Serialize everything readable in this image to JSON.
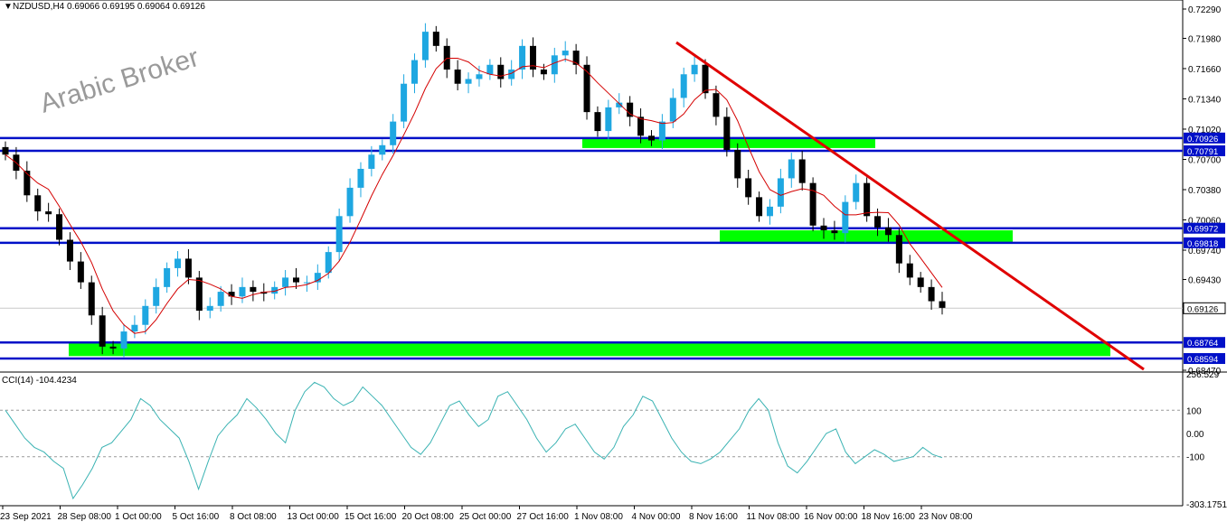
{
  "header": {
    "symbol_line": "NZDUSD,H4  0.69066 0.69195 0.69064 0.69126"
  },
  "watermark": "Arabic Broker",
  "indicator": {
    "label": "CCI(14) -104.4234"
  },
  "colors": {
    "bull_candle": "#1ea7e1",
    "bear_candle": "#000000",
    "ma_line": "#d40000",
    "cci_line": "#3bb3b3",
    "level_line": "#0010c8",
    "zone_fill": "#00ff00",
    "trendline": "#e00000",
    "price_tag_bg": "#0010c8"
  },
  "chart_data": [
    {
      "type": "candlestick",
      "title": "NZDUSD,H4",
      "ylim": [
        0.6847,
        0.7229
      ],
      "y_ticks": [
        "0.72290",
        "0.71980",
        "0.71660",
        "0.71340",
        "0.71020",
        "0.70700",
        "0.70380",
        "0.70060",
        "0.69740",
        "0.69430",
        "0.68470"
      ],
      "x_labels": [
        "23 Sep 2021",
        "28 Sep 08:00",
        "1 Oct 00:00",
        "5 Oct 16:00",
        "8 Oct 08:00",
        "13 Oct 00:00",
        "15 Oct 16:00",
        "20 Oct 08:00",
        "25 Oct 00:00",
        "27 Oct 16:00",
        "1 Nov 08:00",
        "4 Nov 00:00",
        "8 Nov 16:00",
        "11 Nov 08:00",
        "16 Nov 00:00",
        "18 Nov 16:00",
        "23 Nov 08:00"
      ],
      "current_price": "0.69126",
      "horizontal_levels": [
        "0.70926",
        "0.70791",
        "0.69972",
        "0.69818",
        "0.68764",
        "0.68594"
      ],
      "support_resistance_zones": [
        {
          "from": 0.7082,
          "to": 0.7092
        },
        {
          "from": 0.6982,
          "to": 0.6995
        },
        {
          "from": 0.6862,
          "to": 0.6876
        }
      ],
      "series": [
        {
          "name": "close",
          "x": [
            "23 Sep",
            "23 Sep",
            "24 Sep",
            "24 Sep",
            "27 Sep",
            "27 Sep",
            "28 Sep",
            "28 Sep",
            "29 Sep",
            "29 Sep",
            "30 Sep",
            "30 Sep",
            "1 Oct",
            "1 Oct",
            "4 Oct",
            "4 Oct",
            "5 Oct",
            "5 Oct",
            "6 Oct",
            "6 Oct",
            "7 Oct",
            "7 Oct",
            "8 Oct",
            "8 Oct",
            "11 Oct",
            "11 Oct",
            "12 Oct",
            "12 Oct",
            "13 Oct",
            "13 Oct",
            "14 Oct",
            "14 Oct",
            "15 Oct",
            "15 Oct",
            "18 Oct",
            "18 Oct",
            "19 Oct",
            "19 Oct",
            "20 Oct",
            "20 Oct",
            "21 Oct",
            "21 Oct",
            "22 Oct",
            "22 Oct",
            "25 Oct",
            "25 Oct",
            "26 Oct",
            "26 Oct",
            "27 Oct",
            "27 Oct",
            "28 Oct",
            "28 Oct",
            "29 Oct",
            "29 Oct",
            "1 Nov",
            "1 Nov",
            "2 Nov",
            "2 Nov",
            "3 Nov",
            "3 Nov",
            "4 Nov",
            "4 Nov",
            "5 Nov",
            "5 Nov",
            "8 Nov",
            "8 Nov",
            "9 Nov",
            "9 Nov",
            "10 Nov",
            "10 Nov",
            "11 Nov",
            "11 Nov",
            "12 Nov",
            "12 Nov",
            "15 Nov",
            "15 Nov",
            "16 Nov",
            "16 Nov",
            "17 Nov",
            "17 Nov",
            "18 Nov",
            "18 Nov",
            "19 Nov",
            "19 Nov",
            "22 Nov",
            "22 Nov",
            "23 Nov",
            "23 Nov"
          ],
          "values": [
            0.7075,
            0.7058,
            0.7032,
            0.7015,
            0.7012,
            0.6985,
            0.6962,
            0.694,
            0.6905,
            0.6872,
            0.687,
            0.6888,
            0.6895,
            0.6915,
            0.6935,
            0.6955,
            0.6965,
            0.6945,
            0.691,
            0.6915,
            0.693,
            0.6925,
            0.6935,
            0.693,
            0.6928,
            0.6935,
            0.6945,
            0.694,
            0.694,
            0.695,
            0.6972,
            0.701,
            0.704,
            0.706,
            0.7075,
            0.7085,
            0.711,
            0.715,
            0.7175,
            0.7205,
            0.719,
            0.7165,
            0.715,
            0.7155,
            0.716,
            0.717,
            0.7155,
            0.7165,
            0.719,
            0.7165,
            0.716,
            0.718,
            0.7185,
            0.717,
            0.712,
            0.71,
            0.7125,
            0.713,
            0.7115,
            0.7095,
            0.709,
            0.711,
            0.7135,
            0.716,
            0.717,
            0.714,
            0.7115,
            0.708,
            0.705,
            0.703,
            0.701,
            0.702,
            0.705,
            0.707,
            0.7045,
            0.7,
            0.6995,
            0.6992,
            0.7025,
            0.7045,
            0.701,
            0.6998,
            0.699,
            0.696,
            0.6945,
            0.6935,
            0.692,
            0.6913
          ]
        }
      ]
    },
    {
      "type": "line",
      "title": "CCI(14) -104.4234",
      "ylim": [
        -303.1751,
        256.529
      ],
      "y_ticks": [
        "256.529",
        "100",
        "0.00",
        "-100",
        "-303.1751"
      ],
      "series": [
        {
          "name": "CCI(14)",
          "values": [
            100,
            40,
            -20,
            -60,
            -80,
            -120,
            -150,
            -280,
            -220,
            -150,
            -60,
            -40,
            10,
            60,
            150,
            120,
            60,
            20,
            -20,
            -120,
            -240,
            -120,
            -10,
            40,
            80,
            150,
            110,
            60,
            0,
            -40,
            100,
            180,
            220,
            200,
            150,
            120,
            140,
            200,
            160,
            120,
            60,
            0,
            -60,
            -90,
            -40,
            40,
            120,
            140,
            80,
            30,
            60,
            160,
            180,
            120,
            60,
            -20,
            -80,
            -40,
            20,
            40,
            -20,
            -80,
            -110,
            -60,
            30,
            80,
            160,
            140,
            60,
            -20,
            -80,
            -120,
            -130,
            -110,
            -80,
            -30,
            20,
            100,
            150,
            100,
            -40,
            -140,
            -170,
            -120,
            -60,
            0,
            20,
            -80,
            -130,
            -100,
            -70,
            -90,
            -120,
            -110,
            -100,
            -60,
            -90,
            -104
          ]
        }
      ]
    }
  ]
}
